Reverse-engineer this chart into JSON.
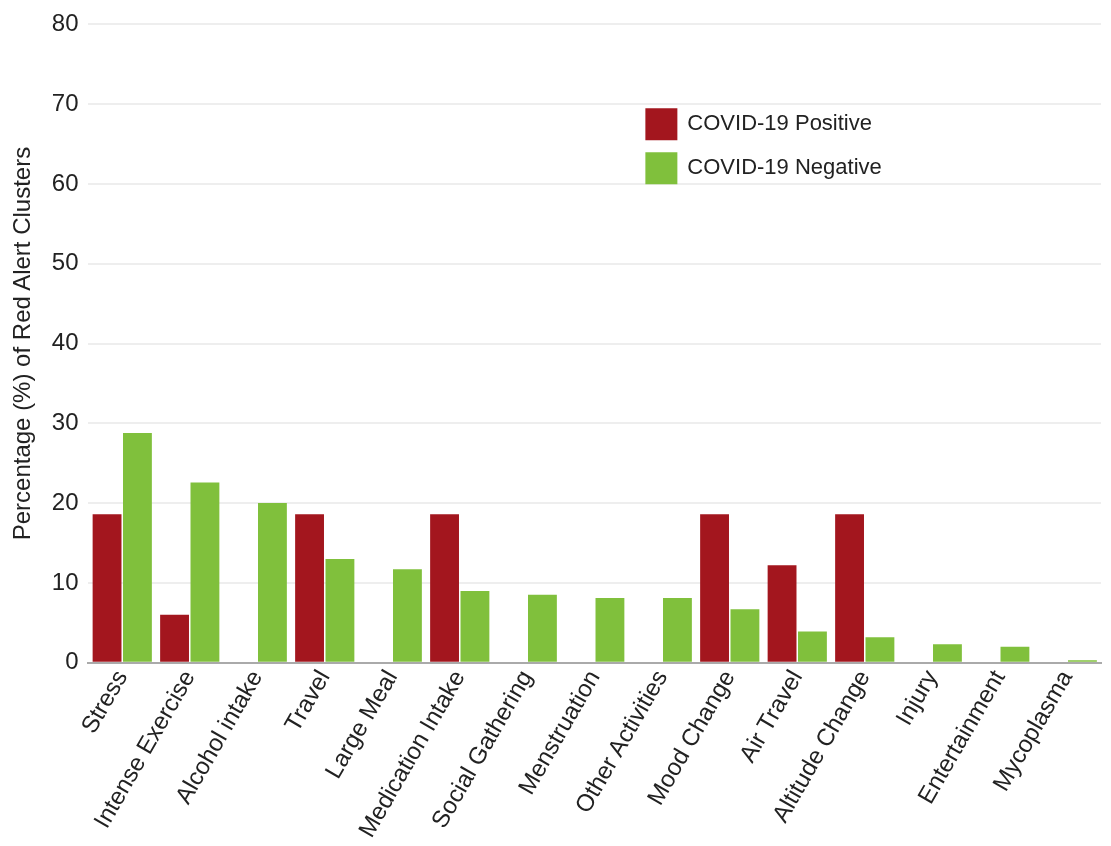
{
  "chart_data": {
    "type": "bar",
    "ylabel": "Percentage (%) of Red Alert Clusters",
    "categories": [
      "Stress",
      "Intense Exercise",
      "Alcohol intake",
      "Travel",
      "Large Meal",
      "Medication Intake",
      "Social Gathering",
      "Menstruation",
      "Other Activities",
      "Mood Change",
      "Air Travel",
      "Altitude Change",
      "Injury",
      "Entertainment",
      "Mycoplasma"
    ],
    "series": [
      {
        "name": "COVID-19 Positive",
        "color": "#a3161e",
        "values": [
          18.6,
          6.0,
          0,
          18.6,
          0,
          18.6,
          0,
          0,
          0,
          18.6,
          12.2,
          18.6,
          0,
          0,
          0
        ]
      },
      {
        "name": "COVID-19 Negative",
        "color": "#80c03c",
        "values": [
          28.8,
          22.6,
          20.0,
          13.0,
          11.7,
          9.0,
          8.5,
          8.1,
          8.1,
          6.7,
          3.9,
          3.2,
          2.3,
          2.0,
          0.3
        ]
      }
    ],
    "ylim": [
      0,
      80
    ],
    "yticks": [
      0,
      10,
      20,
      30,
      40,
      50,
      60,
      70,
      80
    ],
    "grid": "y",
    "legend": "top right"
  }
}
